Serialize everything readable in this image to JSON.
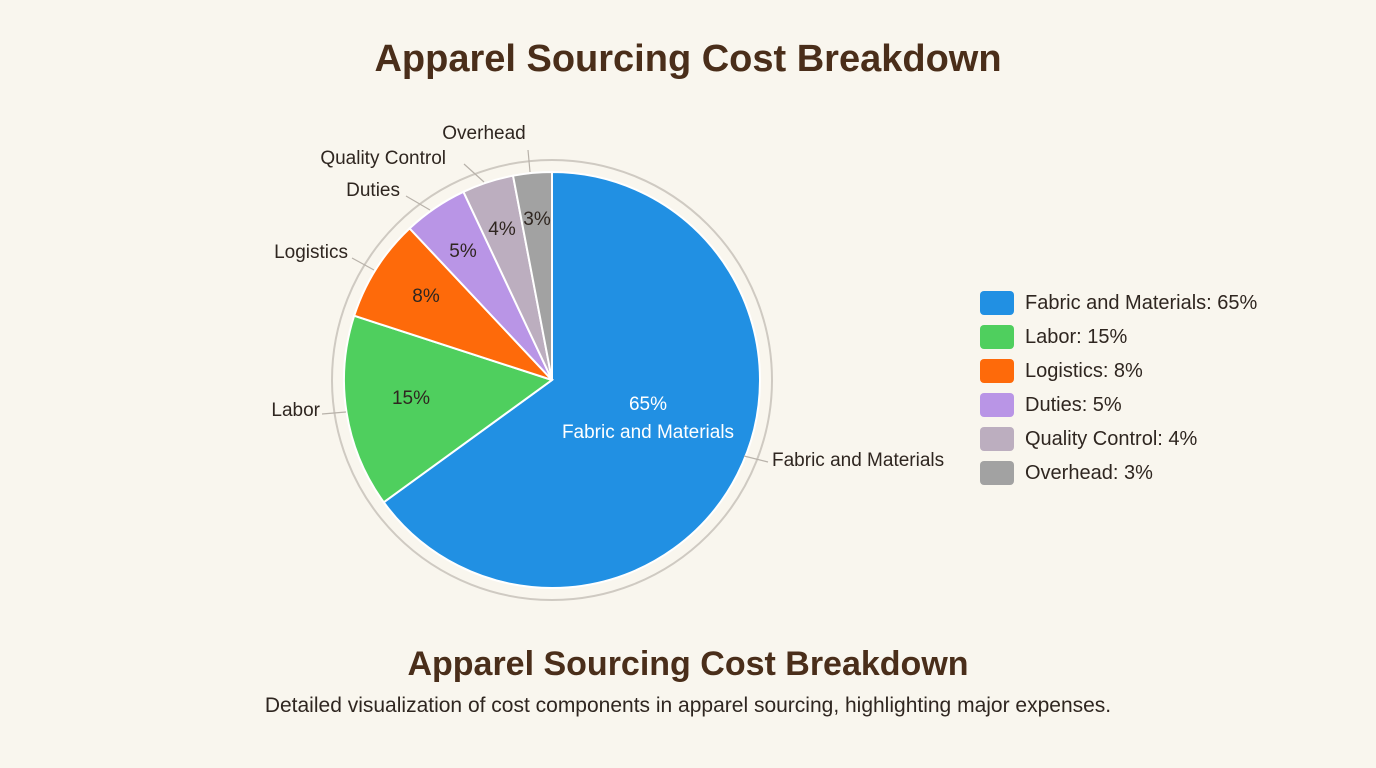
{
  "chart_data": {
    "type": "pie",
    "title": "Apparel Sourcing Cost Breakdown",
    "categories": [
      "Fabric and Materials",
      "Labor",
      "Logistics",
      "Duties",
      "Quality Control",
      "Overhead"
    ],
    "values": [
      65,
      15,
      8,
      5,
      4,
      3
    ],
    "slice_labels": [
      "65%",
      "15%",
      "8%",
      "5%",
      "4%",
      "3%"
    ],
    "center_label_sub": "Fabric and Materials",
    "colors": [
      "#2190e3",
      "#4fcf5e",
      "#fe6a0a",
      "#b995e6",
      "#bcaebf",
      "#a2a2a2"
    ],
    "legend": [
      "Fabric and Materials: 65%",
      "Labor: 15%",
      "Logistics: 8%",
      "Duties: 5%",
      "Quality Control: 4%",
      "Overhead: 3%"
    ],
    "legend_position": "right",
    "start": "top, clockwise"
  },
  "footer": {
    "title": "Apparel Sourcing Cost Breakdown",
    "description": "Detailed visualization of cost components in apparel sourcing, highlighting major expenses."
  }
}
